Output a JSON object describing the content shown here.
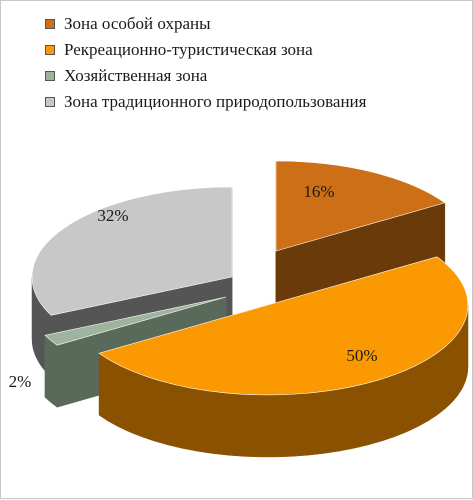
{
  "chart_data": {
    "type": "pie",
    "style": "3d-exploded",
    "legend_position": "top-left",
    "title": "",
    "categories": [
      "Зона особой охраны",
      "Рекреационно-туристическая зона",
      "Хозяйственная зона",
      "Зона традиционного природопользования"
    ],
    "values": [
      16,
      50,
      2,
      32
    ],
    "unit": "%",
    "data_labels": [
      "16%",
      "50%",
      "2%",
      "32%"
    ],
    "colors": {
      "top": [
        "#cc6f17",
        "#fb9902",
        "#9fb49f",
        "#c8c8c8"
      ],
      "side": [
        "#6b3a0b",
        "#8a5200",
        "#5a6a5a",
        "#555555"
      ]
    }
  }
}
